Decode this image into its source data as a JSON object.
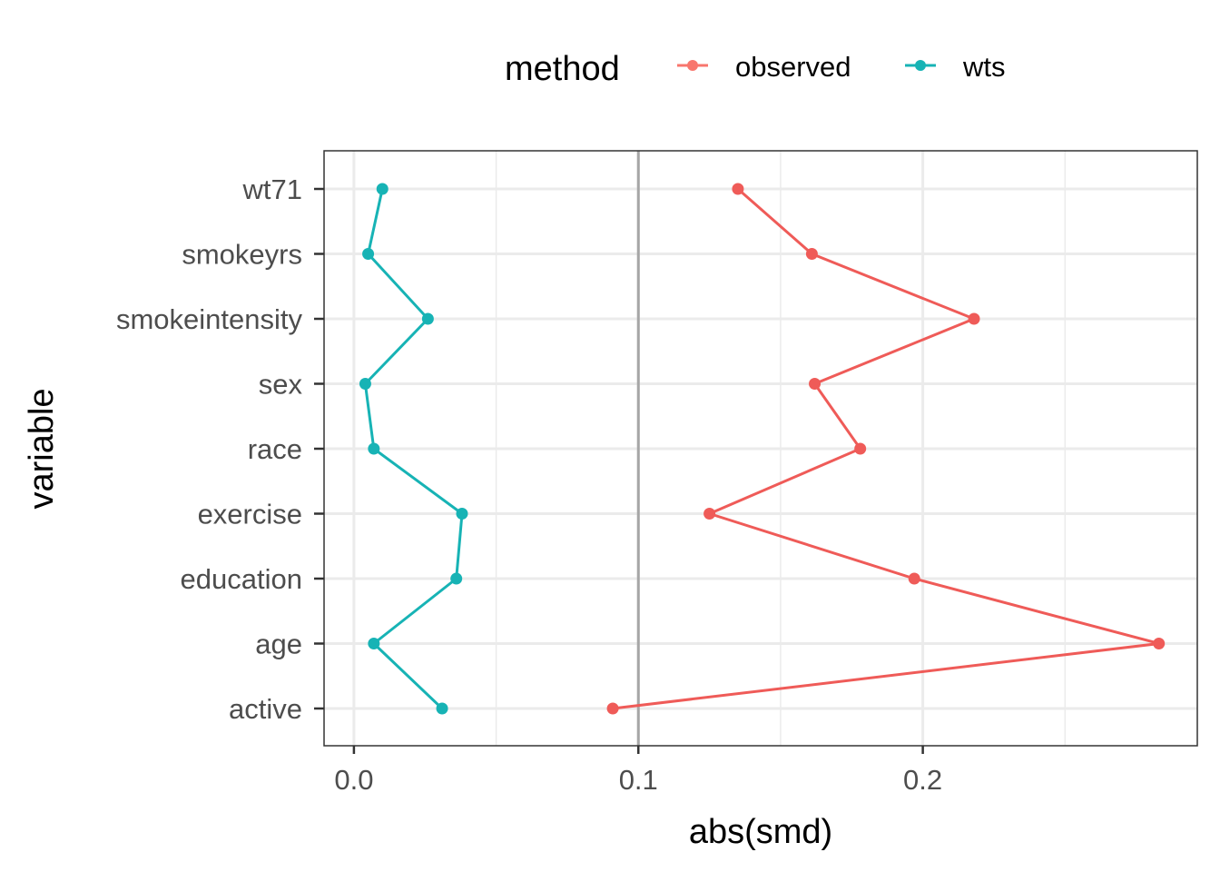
{
  "chart_data": {
    "type": "line",
    "xlabel": "abs(smd)",
    "ylabel": "variable",
    "xlim": [
      -0.0105,
      0.2965
    ],
    "x_ticks": [
      0.0,
      0.1,
      0.2
    ],
    "x_tick_labels": [
      "0.0",
      "0.1",
      "0.2"
    ],
    "categories": [
      "active",
      "age",
      "education",
      "exercise",
      "race",
      "sex",
      "smokeintensity",
      "smokeyrs",
      "wt71"
    ],
    "reference_line": 0.1,
    "grid": true,
    "legend": {
      "title": "method",
      "position": "top",
      "entries": [
        "observed",
        "wts"
      ]
    },
    "series": [
      {
        "name": "observed",
        "color": "#F8766D",
        "values": [
          0.091,
          0.283,
          0.197,
          0.125,
          0.178,
          0.162,
          0.218,
          0.161,
          0.135
        ]
      },
      {
        "name": "wts",
        "color": "#00BFC4",
        "values": [
          0.031,
          0.007,
          0.036,
          0.038,
          0.007,
          0.004,
          0.026,
          0.005,
          0.01
        ]
      }
    ]
  }
}
